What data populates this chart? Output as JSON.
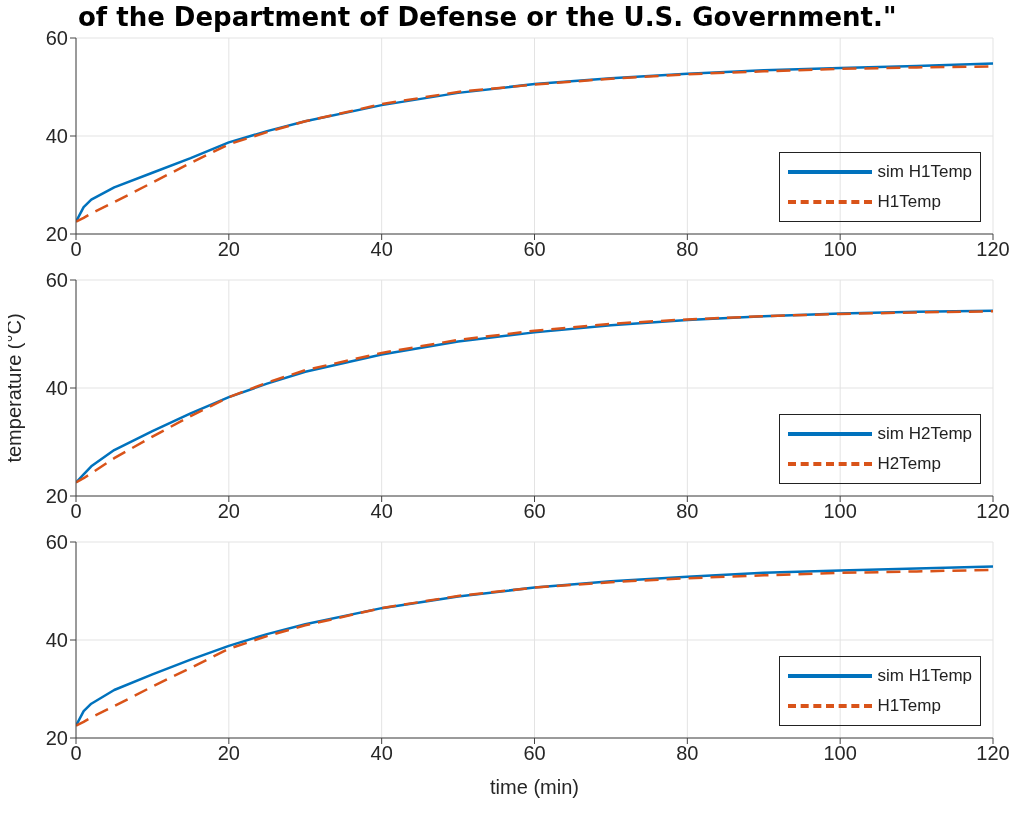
{
  "chart_data": [
    {
      "type": "line",
      "title": "of the Department of Defense or the U.S. Government.\"",
      "x": [
        0,
        1,
        2,
        5,
        10,
        15,
        20,
        25,
        30,
        40,
        50,
        60,
        70,
        80,
        90,
        100,
        110,
        120
      ],
      "series": [
        {
          "name": "sim H1Temp",
          "color": "#0072bd",
          "values": [
            22.5,
            25.5,
            27,
            29.5,
            32.5,
            35.5,
            38.7,
            41,
            43,
            46.3,
            48.8,
            50.6,
            51.8,
            52.7,
            53.4,
            53.9,
            54.3,
            54.8
          ]
        },
        {
          "name": "H1Temp",
          "color": "#d95319",
          "line_style": "dashed",
          "values": [
            22.5,
            23.3,
            24.2,
            26.5,
            30.5,
            34.5,
            38.3,
            40.8,
            43,
            46.5,
            49,
            50.5,
            51.7,
            52.6,
            53.2,
            53.7,
            54,
            54.2
          ]
        }
      ],
      "xlim": [
        0,
        120
      ],
      "xticks": [
        0,
        20,
        40,
        60,
        80,
        100,
        120
      ],
      "ylim": [
        20,
        60
      ],
      "yticks": [
        20,
        40,
        60
      ],
      "grid": true,
      "legend": "bottom right"
    },
    {
      "type": "line",
      "ylabel": "temperature (°C)",
      "x": [
        0,
        1,
        2,
        5,
        10,
        15,
        20,
        25,
        30,
        40,
        50,
        60,
        70,
        80,
        90,
        100,
        110,
        120
      ],
      "series": [
        {
          "name": "sim H2Temp",
          "color": "#0072bd",
          "values": [
            22.5,
            24,
            25.5,
            28.5,
            32,
            35.3,
            38.3,
            40.8,
            43,
            46.2,
            48.6,
            50.3,
            51.6,
            52.6,
            53.3,
            53.8,
            54.1,
            54.3
          ]
        },
        {
          "name": "H2Temp",
          "color": "#d95319",
          "line_style": "dashed",
          "values": [
            22.5,
            23.3,
            24.2,
            27,
            31,
            34.8,
            38.3,
            41,
            43.3,
            46.5,
            48.9,
            50.6,
            51.9,
            52.7,
            53.3,
            53.7,
            54,
            54.2
          ]
        }
      ],
      "xlim": [
        0,
        120
      ],
      "xticks": [
        0,
        20,
        40,
        60,
        80,
        100,
        120
      ],
      "ylim": [
        20,
        60
      ],
      "yticks": [
        20,
        40,
        60
      ],
      "grid": true,
      "legend": "bottom right"
    },
    {
      "type": "line",
      "xlabel": "time (min)",
      "x": [
        0,
        1,
        2,
        5,
        10,
        15,
        20,
        25,
        30,
        40,
        50,
        60,
        70,
        80,
        90,
        100,
        110,
        120
      ],
      "series": [
        {
          "name": "sim H1Temp",
          "color": "#0072bd",
          "values": [
            22.5,
            25.5,
            27,
            29.8,
            33,
            36,
            38.8,
            41.2,
            43.2,
            46.5,
            48.9,
            50.7,
            52,
            52.9,
            53.7,
            54.2,
            54.6,
            55
          ]
        },
        {
          "name": "H1Temp",
          "color": "#d95319",
          "line_style": "dashed",
          "values": [
            22.5,
            23.3,
            24.2,
            26.5,
            30.5,
            34.3,
            38.2,
            40.8,
            43,
            46.5,
            49,
            50.7,
            51.8,
            52.6,
            53.2,
            53.7,
            54,
            54.3
          ]
        }
      ],
      "xlim": [
        0,
        120
      ],
      "xticks": [
        0,
        20,
        40,
        60,
        80,
        100,
        120
      ],
      "ylim": [
        20,
        60
      ],
      "yticks": [
        20,
        40,
        60
      ],
      "grid": true,
      "legend": "bottom right"
    }
  ]
}
